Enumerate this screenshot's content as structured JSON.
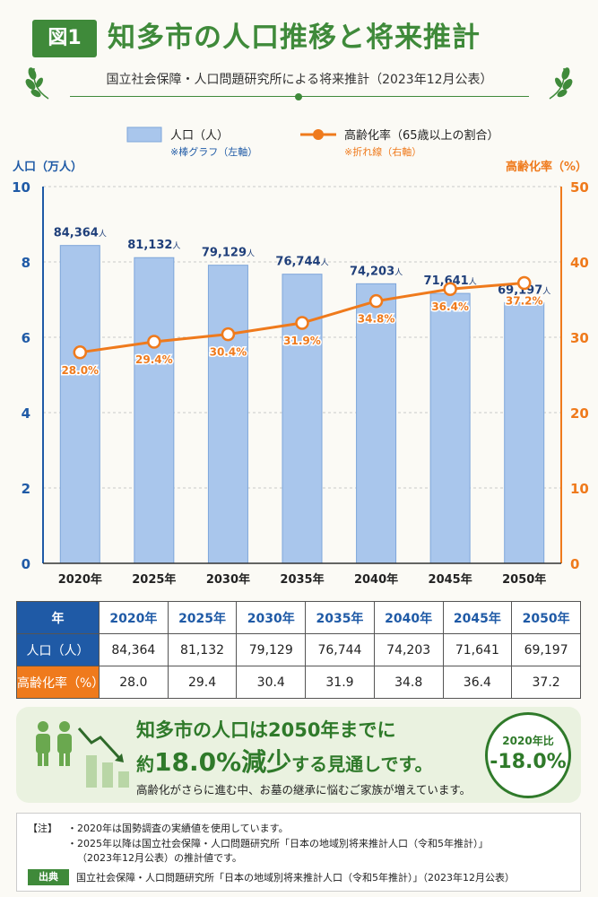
{
  "header": {
    "badge": "図1",
    "title": "知多市の人口推移と将来推計",
    "subtitle": "国立社会保障・人口問題研究所による将来推計（2023年12月公表）"
  },
  "legend": {
    "bar_label": "人口（人）",
    "bar_note": "※棒グラフ（左軸）",
    "line_label": "高齢化率（65歳以上の割合）",
    "line_note": "※折れ線（右軸）"
  },
  "colors": {
    "bar": "#a9c6ec",
    "bar_stroke": "#7ea6da",
    "left_axis": "#1f5aa6",
    "line": "#ef7a1c",
    "green": "#3f8a3a"
  },
  "chart_data": {
    "type": "bar",
    "categories": [
      "2020年",
      "2025年",
      "2030年",
      "2035年",
      "2040年",
      "2045年",
      "2050年"
    ],
    "series": [
      {
        "name": "人口（人）",
        "axis": "left",
        "unit": "万人",
        "values": [
          8.4364,
          8.1132,
          7.9129,
          7.6744,
          7.4203,
          7.1641,
          6.9197
        ],
        "labels": [
          "84,364",
          "81,132",
          "79,129",
          "76,744",
          "74,203",
          "71,641",
          "69,197"
        ],
        "label_suffix": "人"
      },
      {
        "name": "高齢化率（65歳以上の割合）",
        "axis": "right",
        "type": "line",
        "values": [
          28.0,
          29.4,
          30.4,
          31.9,
          34.8,
          36.4,
          37.2
        ],
        "labels": [
          "28.0%",
          "29.4%",
          "30.4%",
          "31.9%",
          "34.8%",
          "36.4%",
          "37.2%"
        ]
      }
    ],
    "ylabel": "人口（万人）",
    "ylabel_right": "高齢化率（%）",
    "ylim": [
      0,
      10
    ],
    "yticks": [
      "0",
      "2",
      "4",
      "6",
      "8",
      "10"
    ],
    "ylim_right": [
      0,
      50
    ],
    "yticks_right": [
      "0",
      "10",
      "20",
      "30",
      "40",
      "50"
    ],
    "grid": true,
    "legend_position": "top"
  },
  "table": {
    "head": [
      "年",
      "2020年",
      "2025年",
      "2030年",
      "2035年",
      "2040年",
      "2045年",
      "2050年"
    ],
    "pop_label": "人口（人）",
    "pop": [
      "84,364",
      "81,132",
      "79,129",
      "76,744",
      "74,203",
      "71,641",
      "69,197"
    ],
    "rate_label": "高齢化率（%）",
    "rate": [
      "28.0",
      "29.4",
      "30.4",
      "31.9",
      "34.8",
      "36.4",
      "37.2"
    ]
  },
  "summary": {
    "line1": "知多市の人口は2050年までに",
    "line2_pre": "約",
    "line2_big": "18.0%減少",
    "line2_post": "する見通しです。",
    "line3": "高齢化がさらに進む中、お墓の継承に悩むご家族が増えています。",
    "badge_top": "2020年比",
    "badge_value": "-18.0%"
  },
  "notes": {
    "label": "【注】",
    "n1": "・2020年は国勢調査の実績値を使用しています。",
    "n2": "・2025年以降は国立社会保障・人口問題研究所「日本の地域別将来推計人口（令和5年推計）」",
    "n3": "（2023年12月公表）の推計値です。",
    "source_label": "出典",
    "source": "国立社会保障・人口問題研究所「日本の地域別将来推計人口（令和5年推計）」（2023年12月公表）"
  }
}
